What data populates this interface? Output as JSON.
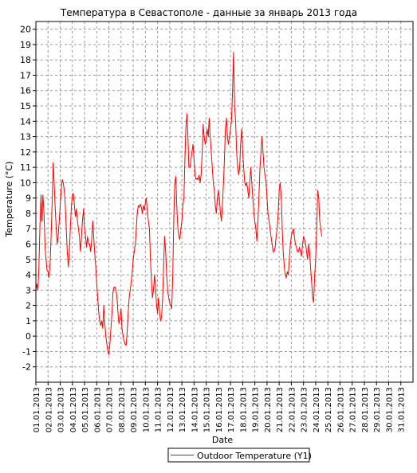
{
  "chart_data": {
    "type": "line",
    "title": "Температура в Севастополе - данные за январь 2013 года",
    "xlabel": "Date",
    "ylabel": "Temperature (°C)",
    "ylim": [
      -3,
      20.5
    ],
    "yticks": [
      -2,
      -1,
      0,
      1,
      2,
      3,
      4,
      5,
      6,
      7,
      8,
      9,
      10,
      11,
      12,
      13,
      14,
      15,
      16,
      17,
      18,
      19,
      20
    ],
    "xlim": [
      1,
      32
    ],
    "xticks": [
      {
        "x": 1,
        "label": "01.01.2013"
      },
      {
        "x": 2,
        "label": "02.01.2013"
      },
      {
        "x": 3,
        "label": "03.01.2013"
      },
      {
        "x": 4,
        "label": "04.01.2013"
      },
      {
        "x": 5,
        "label": "05.01.2013"
      },
      {
        "x": 6,
        "label": "06.01.2013"
      },
      {
        "x": 7,
        "label": "07.01.2013"
      },
      {
        "x": 8,
        "label": "08.01.2013"
      },
      {
        "x": 9,
        "label": "09.01.2013"
      },
      {
        "x": 10,
        "label": "10.01.2013"
      },
      {
        "x": 11,
        "label": "11.01.2013"
      },
      {
        "x": 12,
        "label": "12.01.2013"
      },
      {
        "x": 13,
        "label": "13.01.2013"
      },
      {
        "x": 14,
        "label": "14.01.2013"
      },
      {
        "x": 15,
        "label": "15.01.2013"
      },
      {
        "x": 16,
        "label": "16.01.2013"
      },
      {
        "x": 17,
        "label": "17.01.2013"
      },
      {
        "x": 18,
        "label": "18.01.2013"
      },
      {
        "x": 19,
        "label": "19.01.2013"
      },
      {
        "x": 20,
        "label": "20.01.2013"
      },
      {
        "x": 21,
        "label": "21.01.2013"
      },
      {
        "x": 22,
        "label": "22.01.2013"
      },
      {
        "x": 23,
        "label": "23.01.2013"
      },
      {
        "x": 24,
        "label": "24.01.2013"
      },
      {
        "x": 25,
        "label": "25.01.2013"
      },
      {
        "x": 26,
        "label": "26.01.2013"
      },
      {
        "x": 27,
        "label": "27.01.2013"
      },
      {
        "x": 28,
        "label": "28.01.2013"
      },
      {
        "x": 29,
        "label": "29.01.2013"
      },
      {
        "x": 30,
        "label": "30.01.2013"
      },
      {
        "x": 31,
        "label": "31.01.2013"
      }
    ],
    "grid": true,
    "legend_position": "bottom",
    "series": [
      {
        "name": "Outdoor Temperature (Y1)",
        "color": "#ff0000",
        "points": [
          [
            1.0,
            3.0
          ],
          [
            1.08,
            3.4
          ],
          [
            1.17,
            3.0
          ],
          [
            1.25,
            4.5
          ],
          [
            1.33,
            7.0
          ],
          [
            1.42,
            9.2
          ],
          [
            1.5,
            7.5
          ],
          [
            1.58,
            9.2
          ],
          [
            1.67,
            8.0
          ],
          [
            1.75,
            6.0
          ],
          [
            1.83,
            5.0
          ],
          [
            1.92,
            4.3
          ],
          [
            2.0,
            4.2
          ],
          [
            2.08,
            3.8
          ],
          [
            2.17,
            4.8
          ],
          [
            2.25,
            6.5
          ],
          [
            2.33,
            8.5
          ],
          [
            2.42,
            11.3
          ],
          [
            2.5,
            10.0
          ],
          [
            2.58,
            8.5
          ],
          [
            2.67,
            7.0
          ],
          [
            2.75,
            6.0
          ],
          [
            2.83,
            6.5
          ],
          [
            2.92,
            7.5
          ],
          [
            3.0,
            8.5
          ],
          [
            3.08,
            9.5
          ],
          [
            3.17,
            10.2
          ],
          [
            3.25,
            10.0
          ],
          [
            3.33,
            9.5
          ],
          [
            3.42,
            8.5
          ],
          [
            3.5,
            7.0
          ],
          [
            3.58,
            5.5
          ],
          [
            3.67,
            4.5
          ],
          [
            3.75,
            5.5
          ],
          [
            3.83,
            7.0
          ],
          [
            3.92,
            8.5
          ],
          [
            4.0,
            9.2
          ],
          [
            4.08,
            9.3
          ],
          [
            4.17,
            8.5
          ],
          [
            4.25,
            7.8
          ],
          [
            4.33,
            8.3
          ],
          [
            4.42,
            7.5
          ],
          [
            4.5,
            7.0
          ],
          [
            4.58,
            6.5
          ],
          [
            4.67,
            5.5
          ],
          [
            4.75,
            6.5
          ],
          [
            4.83,
            7.5
          ],
          [
            4.92,
            8.3
          ],
          [
            5.0,
            7.0
          ],
          [
            5.08,
            6.5
          ],
          [
            5.17,
            5.8
          ],
          [
            5.25,
            6.5
          ],
          [
            5.33,
            6.0
          ],
          [
            5.42,
            6.0
          ],
          [
            5.5,
            5.5
          ],
          [
            5.58,
            6.2
          ],
          [
            5.67,
            7.5
          ],
          [
            5.75,
            6.5
          ],
          [
            5.83,
            5.5
          ],
          [
            5.92,
            4.5
          ],
          [
            6.0,
            3.5
          ],
          [
            6.08,
            2.5
          ],
          [
            6.17,
            1.5
          ],
          [
            6.25,
            1.0
          ],
          [
            6.33,
            0.7
          ],
          [
            6.42,
            1.0
          ],
          [
            6.5,
            0.5
          ],
          [
            6.58,
            2.0
          ],
          [
            6.67,
            0.8
          ],
          [
            6.75,
            0.0
          ],
          [
            6.83,
            -0.5
          ],
          [
            6.92,
            -1.0
          ],
          [
            7.0,
            -1.2
          ],
          [
            7.08,
            -0.5
          ],
          [
            7.17,
            0.5
          ],
          [
            7.25,
            1.5
          ],
          [
            7.33,
            2.8
          ],
          [
            7.42,
            3.2
          ],
          [
            7.5,
            3.2
          ],
          [
            7.58,
            3.0
          ],
          [
            7.67,
            2.5
          ],
          [
            7.75,
            1.5
          ],
          [
            7.83,
            0.8
          ],
          [
            7.92,
            1.2
          ],
          [
            8.0,
            1.8
          ],
          [
            8.08,
            0.5
          ],
          [
            8.17,
            0.0
          ],
          [
            8.25,
            -0.3
          ],
          [
            8.33,
            -0.5
          ],
          [
            8.42,
            -0.6
          ],
          [
            8.5,
            0.2
          ],
          [
            8.58,
            1.5
          ],
          [
            8.67,
            2.5
          ],
          [
            8.75,
            3.0
          ],
          [
            8.83,
            3.5
          ],
          [
            8.92,
            4.2
          ],
          [
            9.0,
            5.0
          ],
          [
            9.08,
            5.5
          ],
          [
            9.17,
            6.0
          ],
          [
            9.25,
            7.0
          ],
          [
            9.33,
            8.0
          ],
          [
            9.42,
            8.5
          ],
          [
            9.5,
            8.4
          ],
          [
            9.58,
            8.6
          ],
          [
            9.67,
            8.4
          ],
          [
            9.75,
            8.0
          ],
          [
            9.83,
            8.5
          ],
          [
            9.92,
            8.2
          ],
          [
            10.0,
            8.7
          ],
          [
            10.08,
            9.0
          ],
          [
            10.17,
            8.0
          ],
          [
            10.25,
            7.5
          ],
          [
            10.33,
            7.0
          ],
          [
            10.42,
            5.0
          ],
          [
            10.5,
            3.5
          ],
          [
            10.58,
            2.5
          ],
          [
            10.67,
            3.0
          ],
          [
            10.75,
            4.0
          ],
          [
            10.83,
            3.2
          ],
          [
            10.92,
            2.0
          ],
          [
            11.0,
            1.5
          ],
          [
            11.08,
            2.5
          ],
          [
            11.17,
            1.5
          ],
          [
            11.25,
            1.0
          ],
          [
            11.33,
            1.2
          ],
          [
            11.42,
            2.5
          ],
          [
            11.5,
            4.5
          ],
          [
            11.58,
            6.5
          ],
          [
            11.67,
            5.5
          ],
          [
            11.75,
            4.0
          ],
          [
            11.83,
            3.0
          ],
          [
            11.92,
            2.5
          ],
          [
            12.0,
            2.2
          ],
          [
            12.08,
            2.0
          ],
          [
            12.17,
            1.8
          ],
          [
            12.25,
            4.0
          ],
          [
            12.33,
            7.5
          ],
          [
            12.42,
            10.0
          ],
          [
            12.5,
            10.4
          ],
          [
            12.58,
            8.5
          ],
          [
            12.67,
            7.0
          ],
          [
            12.75,
            6.5
          ],
          [
            12.83,
            6.3
          ],
          [
            12.92,
            7.0
          ],
          [
            13.0,
            7.5
          ],
          [
            13.08,
            8.5
          ],
          [
            13.17,
            9.0
          ],
          [
            13.25,
            11.5
          ],
          [
            13.33,
            13.5
          ],
          [
            13.42,
            14.5
          ],
          [
            13.5,
            13.0
          ],
          [
            13.58,
            11.0
          ],
          [
            13.67,
            11.0
          ],
          [
            13.75,
            11.5
          ],
          [
            13.83,
            12.0
          ],
          [
            13.92,
            12.5
          ],
          [
            14.0,
            11.5
          ],
          [
            14.08,
            10.5
          ],
          [
            14.17,
            10.2
          ],
          [
            14.25,
            10.3
          ],
          [
            14.33,
            10.2
          ],
          [
            14.42,
            10.5
          ],
          [
            14.5,
            10.0
          ],
          [
            14.58,
            10.5
          ],
          [
            14.67,
            12.0
          ],
          [
            14.75,
            13.8
          ],
          [
            14.83,
            13.0
          ],
          [
            14.92,
            12.5
          ],
          [
            15.0,
            12.8
          ],
          [
            15.08,
            13.5
          ],
          [
            15.17,
            13.0
          ],
          [
            15.25,
            14.2
          ],
          [
            15.33,
            13.0
          ],
          [
            15.42,
            12.0
          ],
          [
            15.5,
            11.0
          ],
          [
            15.58,
            10.0
          ],
          [
            15.67,
            9.5
          ],
          [
            15.75,
            8.5
          ],
          [
            15.83,
            8.0
          ],
          [
            15.92,
            9.0
          ],
          [
            16.0,
            9.5
          ],
          [
            16.08,
            9.0
          ],
          [
            16.17,
            8.0
          ],
          [
            16.25,
            7.5
          ],
          [
            16.33,
            8.5
          ],
          [
            16.42,
            10.0
          ],
          [
            16.5,
            11.5
          ],
          [
            16.58,
            13.5
          ],
          [
            16.67,
            14.2
          ],
          [
            16.75,
            13.0
          ],
          [
            16.83,
            12.5
          ],
          [
            16.92,
            13.0
          ],
          [
            17.0,
            13.5
          ],
          [
            17.08,
            14.0
          ],
          [
            17.17,
            16.0
          ],
          [
            17.25,
            18.5
          ],
          [
            17.33,
            15.0
          ],
          [
            17.42,
            14.0
          ],
          [
            17.5,
            12.0
          ],
          [
            17.58,
            11.0
          ],
          [
            17.67,
            10.5
          ],
          [
            17.75,
            11.0
          ],
          [
            17.83,
            12.5
          ],
          [
            17.92,
            13.5
          ],
          [
            18.0,
            12.0
          ],
          [
            18.08,
            11.0
          ],
          [
            18.17,
            10.0
          ],
          [
            18.25,
            9.8
          ],
          [
            18.33,
            10.0
          ],
          [
            18.42,
            9.5
          ],
          [
            18.5,
            9.0
          ],
          [
            18.58,
            10.0
          ],
          [
            18.67,
            11.0
          ],
          [
            18.75,
            10.0
          ],
          [
            18.83,
            9.0
          ],
          [
            18.92,
            8.0
          ],
          [
            19.0,
            7.5
          ],
          [
            19.08,
            7.0
          ],
          [
            19.17,
            6.2
          ],
          [
            19.25,
            7.5
          ],
          [
            19.33,
            9.0
          ],
          [
            19.42,
            11.0
          ],
          [
            19.5,
            12.0
          ],
          [
            19.58,
            13.0
          ],
          [
            19.67,
            12.0
          ],
          [
            19.75,
            11.0
          ],
          [
            19.83,
            10.5
          ],
          [
            19.92,
            10.0
          ],
          [
            20.0,
            9.0
          ],
          [
            20.08,
            8.0
          ],
          [
            20.17,
            7.5
          ],
          [
            20.25,
            7.0
          ],
          [
            20.33,
            6.5
          ],
          [
            20.42,
            6.0
          ],
          [
            20.5,
            5.5
          ],
          [
            20.58,
            5.5
          ],
          [
            20.67,
            5.8
          ],
          [
            20.75,
            6.5
          ],
          [
            20.83,
            7.0
          ],
          [
            20.92,
            8.0
          ],
          [
            21.0,
            9.5
          ],
          [
            21.08,
            10.0
          ],
          [
            21.17,
            9.0
          ],
          [
            21.25,
            7.0
          ],
          [
            21.33,
            5.5
          ],
          [
            21.42,
            4.5
          ],
          [
            21.5,
            4.0
          ],
          [
            21.58,
            3.8
          ],
          [
            21.67,
            4.2
          ],
          [
            21.75,
            4.0
          ],
          [
            21.83,
            5.0
          ],
          [
            21.92,
            6.0
          ],
          [
            22.0,
            6.5
          ],
          [
            22.08,
            6.8
          ],
          [
            22.17,
            7.0
          ],
          [
            22.25,
            6.5
          ],
          [
            22.33,
            6.0
          ],
          [
            22.42,
            5.8
          ],
          [
            22.5,
            5.5
          ],
          [
            22.58,
            5.5
          ],
          [
            22.67,
            5.8
          ],
          [
            22.75,
            5.5
          ],
          [
            22.83,
            5.2
          ],
          [
            22.92,
            6.0
          ],
          [
            23.0,
            6.5
          ],
          [
            23.08,
            6.3
          ],
          [
            23.17,
            6.0
          ],
          [
            23.25,
            5.5
          ],
          [
            23.33,
            5.0
          ],
          [
            23.42,
            6.0
          ],
          [
            23.5,
            5.5
          ],
          [
            23.58,
            4.5
          ],
          [
            23.67,
            3.5
          ],
          [
            23.75,
            2.5
          ],
          [
            23.83,
            2.2
          ],
          [
            23.92,
            4.0
          ],
          [
            24.0,
            5.0
          ],
          [
            24.08,
            7.0
          ],
          [
            24.17,
            9.5
          ],
          [
            24.25,
            9.0
          ],
          [
            24.33,
            7.5
          ],
          [
            24.42,
            7.0
          ],
          [
            24.5,
            6.5
          ]
        ]
      }
    ]
  }
}
